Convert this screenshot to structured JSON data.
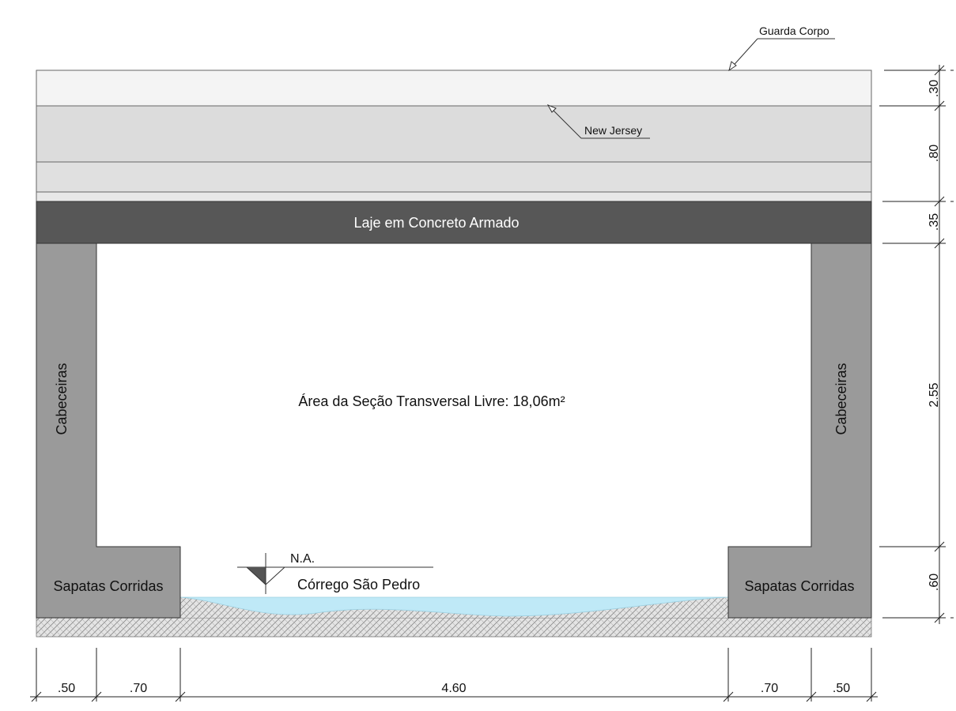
{
  "labels": {
    "guard_rail": "Guarda Corpo",
    "new_jersey": "New Jersey",
    "slab": "Laje em Concreto Armado",
    "free_area": "Área da Seção Transversal Livre: 18,06m²",
    "abutment_left": "Cabeceiras",
    "abutment_right": "Cabeceiras",
    "footing_left": "Sapatas Corridas",
    "footing_right": "Sapatas Corridas",
    "water_level": "N.A.",
    "stream": "Córrego São Pedro"
  },
  "dimensions": {
    "vertical": [
      ".30",
      ".80",
      ".35",
      "2.55",
      ".60"
    ],
    "horizontal": [
      ".50",
      ".70",
      "4.60",
      ".70",
      ".50"
    ]
  },
  "colors": {
    "slab": "#575757",
    "abutment": "#9a9a9a",
    "guard_rail": "#f4f4f4",
    "new_jersey": "#e0e0e0",
    "water": "#bfe9f7",
    "soil": "#d9d9d9"
  }
}
